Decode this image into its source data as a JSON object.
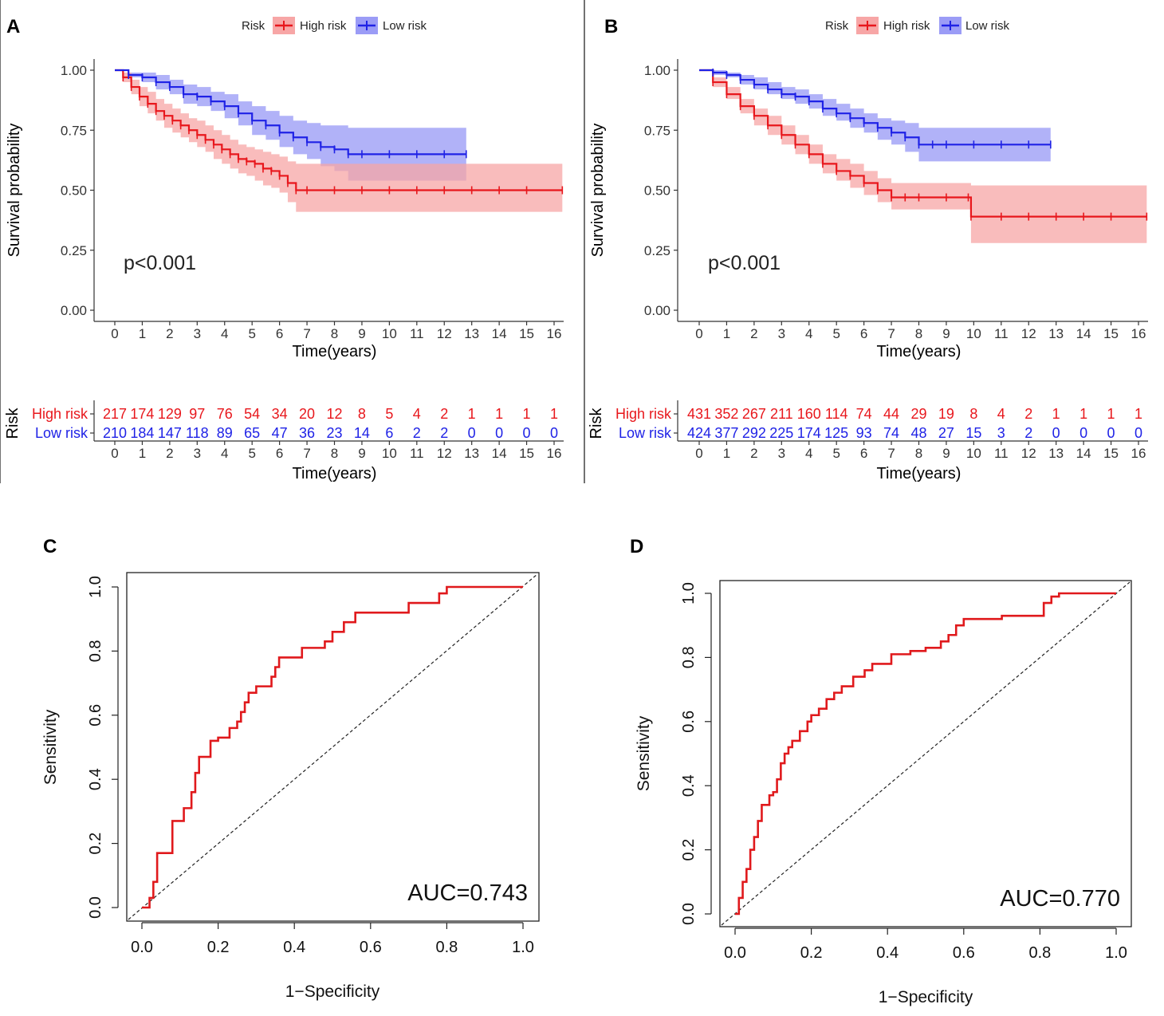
{
  "figure": {
    "panels": [
      "A",
      "B",
      "C",
      "D"
    ]
  },
  "colors": {
    "high": "#e8171c",
    "high_band": "#f7a6a6",
    "low": "#1f22e6",
    "low_band": "#9b9cf6",
    "roc": "#e0191c"
  },
  "chart_data": [
    {
      "panel": "A",
      "type": "line",
      "subtype": "kaplan-meier",
      "xlabel": "Time(years)",
      "ylabel": "Survival probability",
      "xlim": [
        0,
        16
      ],
      "ylim": [
        0,
        1
      ],
      "xticks": [
        "0",
        "1",
        "2",
        "3",
        "4",
        "5",
        "6",
        "7",
        "8",
        "9",
        "10",
        "11",
        "12",
        "13",
        "14",
        "15",
        "16"
      ],
      "yticks": [
        "0.00",
        "0.25",
        "0.50",
        "0.75",
        "1.00"
      ],
      "legend": {
        "title": "Risk",
        "entries": [
          "High risk",
          "Low risk"
        ],
        "position": "top"
      },
      "pvalue": "p<0.001",
      "series": [
        {
          "name": "High risk",
          "x": [
            0,
            0.3,
            0.6,
            0.9,
            1.2,
            1.5,
            1.8,
            2.1,
            2.4,
            2.7,
            3.0,
            3.3,
            3.6,
            3.9,
            4.2,
            4.5,
            4.8,
            5.1,
            5.4,
            5.7,
            6.0,
            6.3,
            6.6,
            7,
            8,
            9,
            10,
            11,
            12,
            13,
            14,
            15,
            16.3
          ],
          "y": [
            1.0,
            0.97,
            0.93,
            0.89,
            0.86,
            0.83,
            0.81,
            0.79,
            0.77,
            0.75,
            0.73,
            0.71,
            0.69,
            0.67,
            0.65,
            0.63,
            0.62,
            0.61,
            0.59,
            0.58,
            0.56,
            0.53,
            0.5,
            0.5,
            0.5,
            0.5,
            0.5,
            0.5,
            0.5,
            0.5,
            0.5,
            0.5,
            0.5
          ],
          "lower": [
            1.0,
            0.95,
            0.9,
            0.85,
            0.82,
            0.79,
            0.76,
            0.74,
            0.72,
            0.7,
            0.68,
            0.66,
            0.63,
            0.61,
            0.59,
            0.57,
            0.56,
            0.54,
            0.52,
            0.51,
            0.49,
            0.45,
            0.41,
            0.41,
            0.41,
            0.41,
            0.41,
            0.41,
            0.41,
            0.41,
            0.41,
            0.41,
            0.41
          ],
          "upper": [
            1.0,
            0.99,
            0.96,
            0.93,
            0.91,
            0.88,
            0.86,
            0.84,
            0.82,
            0.8,
            0.79,
            0.77,
            0.75,
            0.73,
            0.71,
            0.69,
            0.68,
            0.67,
            0.66,
            0.65,
            0.64,
            0.62,
            0.61,
            0.61,
            0.61,
            0.61,
            0.61,
            0.61,
            0.61,
            0.61,
            0.61,
            0.61,
            0.61
          ]
        },
        {
          "name": "Low risk",
          "x": [
            0,
            0.5,
            1.0,
            1.5,
            2.0,
            2.5,
            3.0,
            3.5,
            4.0,
            4.5,
            5.0,
            5.5,
            6.0,
            6.5,
            7.0,
            7.5,
            8.0,
            8.5,
            9,
            10,
            11,
            12,
            12.8
          ],
          "y": [
            1.0,
            0.98,
            0.97,
            0.95,
            0.93,
            0.9,
            0.89,
            0.87,
            0.85,
            0.82,
            0.79,
            0.77,
            0.74,
            0.72,
            0.7,
            0.68,
            0.67,
            0.65,
            0.65,
            0.65,
            0.65,
            0.65,
            0.65
          ],
          "lower": [
            1.0,
            0.97,
            0.95,
            0.92,
            0.9,
            0.86,
            0.85,
            0.83,
            0.8,
            0.77,
            0.73,
            0.71,
            0.68,
            0.65,
            0.63,
            0.6,
            0.58,
            0.54,
            0.54,
            0.54,
            0.54,
            0.54,
            0.54
          ],
          "upper": [
            1.0,
            0.99,
            0.99,
            0.98,
            0.96,
            0.94,
            0.93,
            0.91,
            0.9,
            0.87,
            0.85,
            0.83,
            0.81,
            0.79,
            0.78,
            0.77,
            0.77,
            0.76,
            0.76,
            0.76,
            0.76,
            0.76,
            0.76
          ]
        }
      ],
      "risk_table": {
        "title": "Risk",
        "xlabel": "Time(years)",
        "rows": [
          {
            "name": "High risk",
            "values": [
              217,
              174,
              129,
              97,
              76,
              54,
              34,
              20,
              12,
              8,
              5,
              4,
              2,
              1,
              1,
              1,
              1
            ]
          },
          {
            "name": "Low risk",
            "values": [
              210,
              184,
              147,
              118,
              89,
              65,
              47,
              36,
              23,
              14,
              6,
              2,
              2,
              0,
              0,
              0,
              0
            ]
          }
        ]
      }
    },
    {
      "panel": "B",
      "type": "line",
      "subtype": "kaplan-meier",
      "xlabel": "Time(years)",
      "ylabel": "Survival probability",
      "xlim": [
        0,
        16
      ],
      "ylim": [
        0,
        1
      ],
      "xticks": [
        "0",
        "1",
        "2",
        "3",
        "4",
        "5",
        "6",
        "7",
        "8",
        "9",
        "10",
        "11",
        "12",
        "13",
        "14",
        "15",
        "16"
      ],
      "yticks": [
        "0.00",
        "0.25",
        "0.50",
        "0.75",
        "1.00"
      ],
      "legend": {
        "title": "Risk",
        "entries": [
          "High risk",
          "Low risk"
        ],
        "position": "top"
      },
      "pvalue": "p<0.001",
      "series": [
        {
          "name": "High risk",
          "x": [
            0,
            0.5,
            1.0,
            1.5,
            2.0,
            2.5,
            3.0,
            3.5,
            4.0,
            4.5,
            5.0,
            5.5,
            6.0,
            6.5,
            7.0,
            7.5,
            8,
            9,
            9.8,
            9.9,
            11,
            12,
            13,
            14,
            15,
            16.3
          ],
          "y": [
            1.0,
            0.95,
            0.9,
            0.85,
            0.81,
            0.77,
            0.73,
            0.69,
            0.65,
            0.61,
            0.58,
            0.56,
            0.53,
            0.5,
            0.47,
            0.47,
            0.47,
            0.47,
            0.47,
            0.39,
            0.39,
            0.39,
            0.39,
            0.39,
            0.39,
            0.39
          ],
          "lower": [
            1.0,
            0.93,
            0.88,
            0.82,
            0.77,
            0.73,
            0.69,
            0.65,
            0.61,
            0.57,
            0.54,
            0.51,
            0.48,
            0.45,
            0.42,
            0.42,
            0.42,
            0.42,
            0.42,
            0.28,
            0.28,
            0.28,
            0.28,
            0.28,
            0.28,
            0.28
          ],
          "upper": [
            1.0,
            0.97,
            0.93,
            0.88,
            0.84,
            0.81,
            0.77,
            0.73,
            0.69,
            0.65,
            0.63,
            0.61,
            0.58,
            0.55,
            0.53,
            0.53,
            0.53,
            0.53,
            0.53,
            0.52,
            0.52,
            0.52,
            0.52,
            0.52,
            0.52,
            0.52
          ]
        },
        {
          "name": "Low risk",
          "x": [
            0,
            0.5,
            1.0,
            1.5,
            2.0,
            2.5,
            3.0,
            3.5,
            4.0,
            4.5,
            5.0,
            5.5,
            6.0,
            6.5,
            7.0,
            7.5,
            8.0,
            8.5,
            9,
            10,
            11,
            12,
            12.8
          ],
          "y": [
            1.0,
            0.99,
            0.98,
            0.96,
            0.94,
            0.92,
            0.9,
            0.89,
            0.87,
            0.84,
            0.82,
            0.8,
            0.78,
            0.76,
            0.74,
            0.72,
            0.69,
            0.69,
            0.69,
            0.69,
            0.69,
            0.69,
            0.69
          ],
          "lower": [
            1.0,
            0.98,
            0.97,
            0.94,
            0.92,
            0.9,
            0.88,
            0.86,
            0.84,
            0.81,
            0.79,
            0.76,
            0.74,
            0.71,
            0.69,
            0.66,
            0.62,
            0.62,
            0.62,
            0.62,
            0.62,
            0.62,
            0.62
          ],
          "upper": [
            1.0,
            1.0,
            0.99,
            0.98,
            0.97,
            0.95,
            0.93,
            0.92,
            0.9,
            0.88,
            0.86,
            0.84,
            0.82,
            0.8,
            0.79,
            0.78,
            0.76,
            0.76,
            0.76,
            0.76,
            0.76,
            0.76,
            0.76
          ]
        }
      ],
      "risk_table": {
        "title": "Risk",
        "xlabel": "Time(years)",
        "rows": [
          {
            "name": "High risk",
            "values": [
              431,
              352,
              267,
              211,
              160,
              114,
              74,
              44,
              29,
              19,
              8,
              4,
              2,
              1,
              1,
              1,
              1
            ]
          },
          {
            "name": "Low risk",
            "values": [
              424,
              377,
              292,
              225,
              174,
              125,
              93,
              74,
              48,
              27,
              15,
              3,
              2,
              0,
              0,
              0,
              0
            ]
          }
        ]
      }
    },
    {
      "panel": "C",
      "type": "line",
      "subtype": "roc",
      "xlabel": "1−Specificity",
      "ylabel": "Sensitivity",
      "xlim": [
        0,
        1
      ],
      "ylim": [
        0,
        1
      ],
      "xticks": [
        "0.0",
        "0.2",
        "0.4",
        "0.6",
        "0.8",
        "1.0"
      ],
      "yticks": [
        "0.0",
        "0.2",
        "0.4",
        "0.6",
        "0.8",
        "1.0"
      ],
      "annotation": "AUC=0.743",
      "series": [
        {
          "name": "ROC",
          "x": [
            0,
            0.02,
            0.02,
            0.03,
            0.03,
            0.04,
            0.04,
            0.08,
            0.08,
            0.11,
            0.11,
            0.13,
            0.13,
            0.14,
            0.14,
            0.15,
            0.15,
            0.18,
            0.18,
            0.2,
            0.2,
            0.23,
            0.23,
            0.25,
            0.25,
            0.26,
            0.26,
            0.27,
            0.27,
            0.28,
            0.28,
            0.3,
            0.3,
            0.34,
            0.34,
            0.35,
            0.35,
            0.36,
            0.36,
            0.42,
            0.42,
            0.48,
            0.48,
            0.5,
            0.5,
            0.53,
            0.53,
            0.56,
            0.56,
            0.7,
            0.7,
            0.78,
            0.78,
            0.8,
            0.8,
            1.0
          ],
          "y": [
            0,
            0,
            0.03,
            0.03,
            0.08,
            0.08,
            0.17,
            0.17,
            0.27,
            0.27,
            0.31,
            0.31,
            0.36,
            0.36,
            0.42,
            0.42,
            0.47,
            0.47,
            0.52,
            0.52,
            0.53,
            0.53,
            0.56,
            0.56,
            0.58,
            0.58,
            0.61,
            0.61,
            0.64,
            0.64,
            0.67,
            0.67,
            0.69,
            0.69,
            0.72,
            0.72,
            0.75,
            0.75,
            0.78,
            0.78,
            0.81,
            0.81,
            0.83,
            0.83,
            0.86,
            0.86,
            0.89,
            0.89,
            0.92,
            0.92,
            0.95,
            0.95,
            0.98,
            0.98,
            1.0,
            1.0
          ]
        },
        {
          "name": "Reference",
          "x": [
            0,
            1
          ],
          "y": [
            0,
            1
          ]
        }
      ]
    },
    {
      "panel": "D",
      "type": "line",
      "subtype": "roc",
      "xlabel": "1−Specificity",
      "ylabel": "Sensitivity",
      "xlim": [
        0,
        1
      ],
      "ylim": [
        0,
        1
      ],
      "xticks": [
        "0.0",
        "0.2",
        "0.4",
        "0.6",
        "0.8",
        "1.0"
      ],
      "yticks": [
        "0.0",
        "0.2",
        "0.4",
        "0.6",
        "0.8",
        "1.0"
      ],
      "annotation": "AUC=0.770",
      "series": [
        {
          "name": "ROC",
          "x": [
            0,
            0.01,
            0.01,
            0.02,
            0.02,
            0.03,
            0.03,
            0.04,
            0.04,
            0.05,
            0.05,
            0.06,
            0.06,
            0.07,
            0.07,
            0.09,
            0.09,
            0.1,
            0.1,
            0.11,
            0.11,
            0.12,
            0.12,
            0.13,
            0.13,
            0.14,
            0.14,
            0.15,
            0.15,
            0.17,
            0.17,
            0.19,
            0.19,
            0.2,
            0.2,
            0.22,
            0.22,
            0.24,
            0.24,
            0.26,
            0.26,
            0.28,
            0.28,
            0.31,
            0.31,
            0.34,
            0.34,
            0.36,
            0.36,
            0.41,
            0.41,
            0.46,
            0.46,
            0.5,
            0.5,
            0.54,
            0.54,
            0.56,
            0.56,
            0.58,
            0.58,
            0.6,
            0.6,
            0.7,
            0.7,
            0.81,
            0.81,
            0.83,
            0.83,
            0.85,
            0.85,
            1.0
          ],
          "y": [
            0,
            0,
            0.05,
            0.05,
            0.1,
            0.1,
            0.14,
            0.14,
            0.2,
            0.2,
            0.24,
            0.24,
            0.29,
            0.29,
            0.34,
            0.34,
            0.37,
            0.37,
            0.38,
            0.38,
            0.42,
            0.42,
            0.47,
            0.47,
            0.5,
            0.5,
            0.52,
            0.52,
            0.54,
            0.54,
            0.57,
            0.57,
            0.6,
            0.6,
            0.62,
            0.62,
            0.64,
            0.64,
            0.67,
            0.67,
            0.69,
            0.69,
            0.71,
            0.71,
            0.74,
            0.74,
            0.76,
            0.76,
            0.78,
            0.78,
            0.81,
            0.81,
            0.82,
            0.82,
            0.83,
            0.83,
            0.85,
            0.85,
            0.87,
            0.87,
            0.9,
            0.9,
            0.92,
            0.92,
            0.93,
            0.93,
            0.97,
            0.97,
            0.99,
            0.99,
            1.0,
            1.0
          ]
        },
        {
          "name": "Reference",
          "x": [
            0,
            1
          ],
          "y": [
            0,
            1
          ]
        }
      ]
    }
  ]
}
